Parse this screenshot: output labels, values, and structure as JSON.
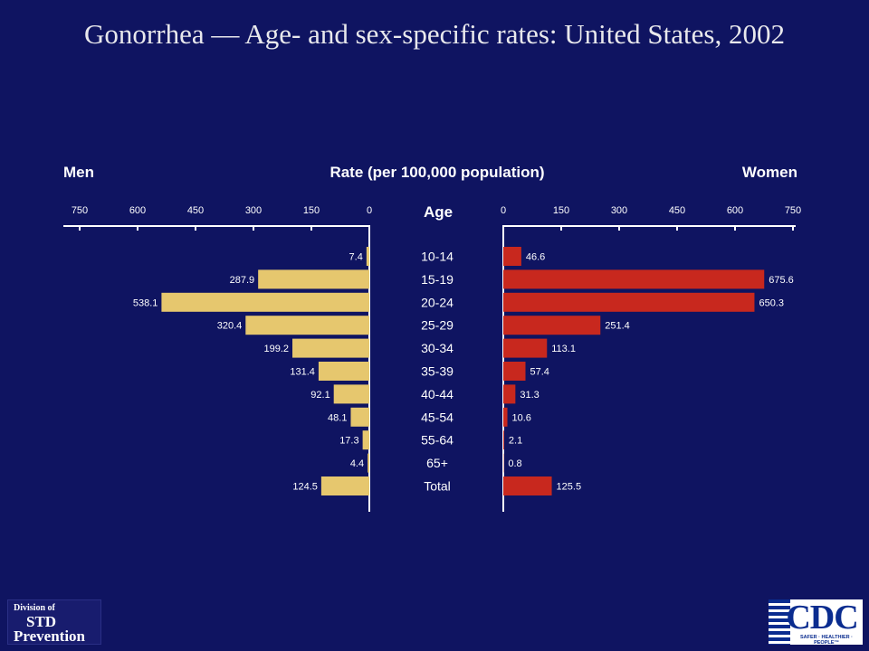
{
  "slide": {
    "title": "Gonorrhea — Age- and sex-specific rates: United States, 2002"
  },
  "logos": {
    "left": {
      "line1": "Division of",
      "line2": "STD",
      "line3": "Prevention"
    },
    "right": {
      "word": "CDC",
      "tagline": "SAFER · HEALTHIER · PEOPLE™"
    }
  },
  "chart_data": {
    "type": "bar",
    "orientation": "horizontal",
    "layout": "population-pyramid",
    "title": "Rate (per 100,000 population)",
    "category_axis_label": "Age",
    "categories": [
      "10-14",
      "15-19",
      "20-24",
      "25-29",
      "30-34",
      "35-39",
      "40-44",
      "45-54",
      "55-64",
      "65+",
      "Total"
    ],
    "series": [
      {
        "name": "Men",
        "side": "left",
        "color": "#e6c76e",
        "values": [
          7.4,
          287.9,
          538.1,
          320.4,
          199.2,
          131.4,
          92.1,
          48.1,
          17.3,
          4.4,
          124.5
        ],
        "labels": [
          "7.4",
          "287.9",
          "538.1",
          "320.4",
          "199.2",
          "131.4",
          "92.1",
          "48.1",
          "17.3",
          "4.4",
          "124.5"
        ]
      },
      {
        "name": "Women",
        "side": "right",
        "color": "#c8281e",
        "values": [
          46.6,
          675.6,
          650.3,
          251.4,
          113.1,
          57.4,
          31.3,
          10.6,
          2.1,
          0.8,
          125.5
        ],
        "labels": [
          "46.6",
          "675.6",
          "650.3",
          "251.4",
          "113.1",
          "57.4",
          "31.3",
          "10.6",
          "2.1",
          "0.8",
          "125.5"
        ]
      }
    ],
    "xlim": [
      0,
      750
    ],
    "ticks": [
      0,
      150,
      300,
      450,
      600,
      750
    ],
    "tick_labels": [
      "0",
      "150",
      "300",
      "450",
      "600",
      "750"
    ],
    "grid": false,
    "legend": "none"
  }
}
